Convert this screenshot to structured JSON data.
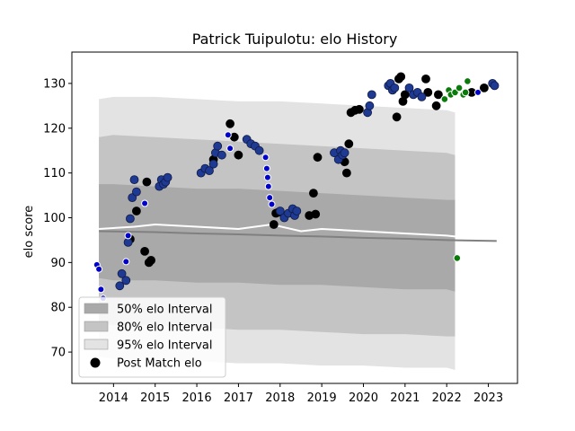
{
  "chart_data": {
    "type": "scatter",
    "title": "Patrick Tuipulotu: elo History",
    "xlabel": "",
    "ylabel": "elo score",
    "xlim": [
      2013.0,
      2023.7
    ],
    "ylim": [
      63,
      137
    ],
    "xticks": [
      2014,
      2015,
      2016,
      2017,
      2018,
      2019,
      2020,
      2021,
      2022,
      2023
    ],
    "yticks": [
      70,
      80,
      90,
      100,
      110,
      120,
      130
    ],
    "grid": false,
    "legend_position": "lower-left",
    "legend": [
      {
        "label": "50% elo Interval",
        "kind": "band50"
      },
      {
        "label": "80% elo Interval",
        "kind": "band80"
      },
      {
        "label": "95% elo Interval",
        "kind": "band95"
      },
      {
        "label": "Post Match elo",
        "kind": "marker"
      }
    ],
    "colors": {
      "band50": "#a9a9a9",
      "band80": "#c4c4c4",
      "band95": "#e3e3e3",
      "post_match": "#000000",
      "series_navy": "#1f3a93",
      "series_blue": "#0000cc",
      "series_green": "#0a7a0a",
      "mean_white": "#ffffff",
      "mean_grey": "#808080"
    },
    "intervals": {
      "x": [
        2013.65,
        2014.0,
        2015.0,
        2016.0,
        2017.0,
        2018.0,
        2019.0,
        2020.0,
        2021.0,
        2022.0,
        2022.2
      ],
      "band95_upper": [
        126.5,
        127.0,
        127.0,
        126.5,
        126.0,
        126.0,
        125.5,
        125.0,
        124.5,
        124.0,
        123.5
      ],
      "band80_upper": [
        118.0,
        118.5,
        118.0,
        117.5,
        117.0,
        116.5,
        116.0,
        115.5,
        115.0,
        114.5,
        114.0
      ],
      "band50_upper": [
        107.5,
        107.5,
        107.0,
        106.5,
        106.5,
        106.0,
        105.5,
        105.0,
        104.5,
        104.0,
        104.0
      ],
      "band50_lower": [
        86.5,
        86.0,
        86.0,
        85.5,
        85.5,
        85.0,
        85.0,
        84.5,
        84.0,
        84.0,
        83.5
      ],
      "band80_lower": [
        76.5,
        76.0,
        76.0,
        75.5,
        75.0,
        75.0,
        74.5,
        74.0,
        74.0,
        73.5,
        73.5
      ],
      "band95_lower": [
        69.0,
        68.5,
        68.0,
        68.0,
        67.5,
        67.5,
        67.0,
        67.0,
        66.5,
        66.5,
        66.0
      ]
    },
    "mean_lines": [
      {
        "color": "white",
        "x": [
          2013.65,
          2014.5,
          2015.0,
          2016.0,
          2017.0,
          2017.8,
          2018.5,
          2019.0,
          2020.0,
          2021.0,
          2022.0,
          2022.2
        ],
        "y": [
          97.5,
          98.0,
          98.5,
          98.0,
          97.5,
          98.5,
          97.0,
          97.5,
          97.0,
          96.5,
          96.0,
          95.8
        ]
      },
      {
        "color": "grey",
        "x": [
          2013.65,
          2015.0,
          2016.0,
          2017.0,
          2018.0,
          2019.0,
          2020.0,
          2021.0,
          2022.0,
          2023.2
        ],
        "y": [
          97.0,
          96.8,
          96.5,
          96.3,
          96.0,
          95.8,
          95.5,
          95.3,
          95.0,
          94.8
        ]
      }
    ],
    "series": [
      {
        "key": "post_match",
        "x": [
          2014.4,
          2014.55,
          2014.75,
          2014.8,
          2014.85,
          2014.9,
          2016.4,
          2016.8,
          2016.9,
          2017.0,
          2017.85,
          2017.9,
          2017.95,
          2018.7,
          2018.8,
          2018.85,
          2018.9,
          2019.55,
          2019.6,
          2019.65,
          2019.7,
          2019.8,
          2019.9,
          2020.8,
          2020.85,
          2020.9,
          2020.95,
          2021.0,
          2021.5,
          2021.55,
          2021.75,
          2021.8,
          2022.6,
          2022.9
        ],
        "y": [
          95.2,
          101.5,
          92.5,
          108.0,
          90.0,
          90.5,
          113.0,
          121.0,
          118.0,
          114.0,
          98.5,
          101.0,
          101.2,
          100.5,
          105.5,
          100.8,
          113.5,
          112.5,
          110.0,
          116.5,
          123.5,
          124.0,
          124.2,
          122.5,
          131.0,
          131.5,
          126.0,
          127.5,
          131.0,
          128.0,
          125.0,
          127.5,
          128.0,
          129.0
        ]
      },
      {
        "key": "series_navy",
        "x": [
          2014.15,
          2014.2,
          2014.3,
          2014.35,
          2014.4,
          2014.45,
          2014.5,
          2014.55,
          2015.1,
          2015.15,
          2015.2,
          2015.25,
          2015.3,
          2016.1,
          2016.2,
          2016.3,
          2016.4,
          2016.45,
          2016.5,
          2016.6,
          2017.2,
          2017.3,
          2017.4,
          2017.5,
          2018.0,
          2018.1,
          2018.2,
          2018.3,
          2018.35,
          2018.4,
          2019.3,
          2019.4,
          2019.45,
          2019.5,
          2019.55,
          2020.1,
          2020.15,
          2020.2,
          2020.6,
          2020.65,
          2020.7,
          2020.75,
          2021.1,
          2021.2,
          2021.3,
          2021.4,
          2023.1,
          2023.15
        ],
        "y": [
          84.8,
          87.5,
          86.0,
          94.5,
          99.8,
          104.5,
          108.5,
          105.8,
          107.0,
          108.5,
          107.5,
          108.0,
          109.0,
          110.0,
          111.0,
          110.5,
          112.0,
          114.5,
          116.0,
          114.0,
          117.5,
          116.5,
          116.0,
          115.0,
          101.5,
          100.0,
          101.0,
          102.0,
          100.5,
          101.5,
          114.5,
          113.0,
          115.0,
          114.0,
          114.5,
          123.5,
          125.0,
          127.5,
          129.5,
          130.0,
          128.5,
          129.0,
          129.0,
          127.5,
          128.0,
          127.0,
          130.0,
          129.5
        ]
      },
      {
        "key": "series_blue",
        "x": [
          2013.6,
          2013.65,
          2013.7,
          2013.75,
          2014.3,
          2014.35,
          2014.75,
          2016.75,
          2016.8,
          2017.65,
          2017.68,
          2017.7,
          2017.72,
          2017.75,
          2017.8,
          2022.75
        ],
        "y": [
          89.5,
          88.5,
          84.0,
          82.0,
          90.2,
          96.0,
          103.2,
          118.5,
          115.5,
          113.5,
          111.0,
          109.0,
          107.0,
          104.5,
          103.0,
          128.0
        ]
      },
      {
        "key": "series_green",
        "x": [
          2021.95,
          2022.05,
          2022.1,
          2022.2,
          2022.3,
          2022.4,
          2022.45,
          2022.5,
          2022.25
        ],
        "y": [
          126.5,
          128.5,
          127.5,
          128.0,
          129.0,
          127.5,
          128.0,
          130.5,
          91.0
        ]
      }
    ]
  }
}
